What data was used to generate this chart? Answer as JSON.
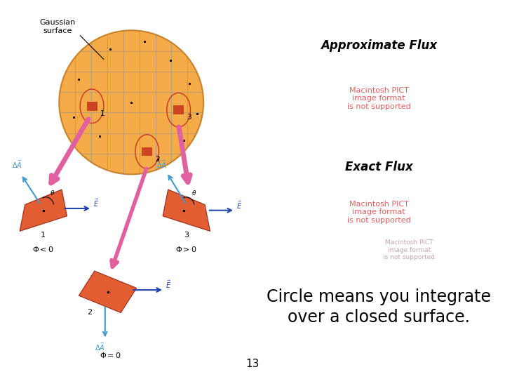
{
  "background_color": "#ffffff",
  "title_approx_flux": "Approximate Flux",
  "title_exact_flux": "Exact Flux",
  "circle_text_line1": "Circle means you integrate",
  "circle_text_line2": "over a closed surface.",
  "page_number": "13",
  "pict_error_text_large": "Macintosh PICT\nimage format\nis not supported",
  "pict_error_text_small": "Macintosh PICT\nimage format\nis not supported",
  "pict_error_color_large": "#e06060",
  "pict_error_color_small": "#b89090",
  "title_fontsize": 12,
  "circle_fontsize": 17,
  "page_num_fontsize": 11,
  "pict_fontsize_large": 8,
  "pict_fontsize_small": 6.5,
  "field_color": "#9999cc",
  "pink_color": "#E060A0",
  "blob_face": "#F5A030",
  "blob_edge": "#C07820",
  "tile_face": "#E05020",
  "tile_edge": "#902010",
  "da_arrow_color": "#4499CC",
  "e_arrow_color": "#2244AA"
}
